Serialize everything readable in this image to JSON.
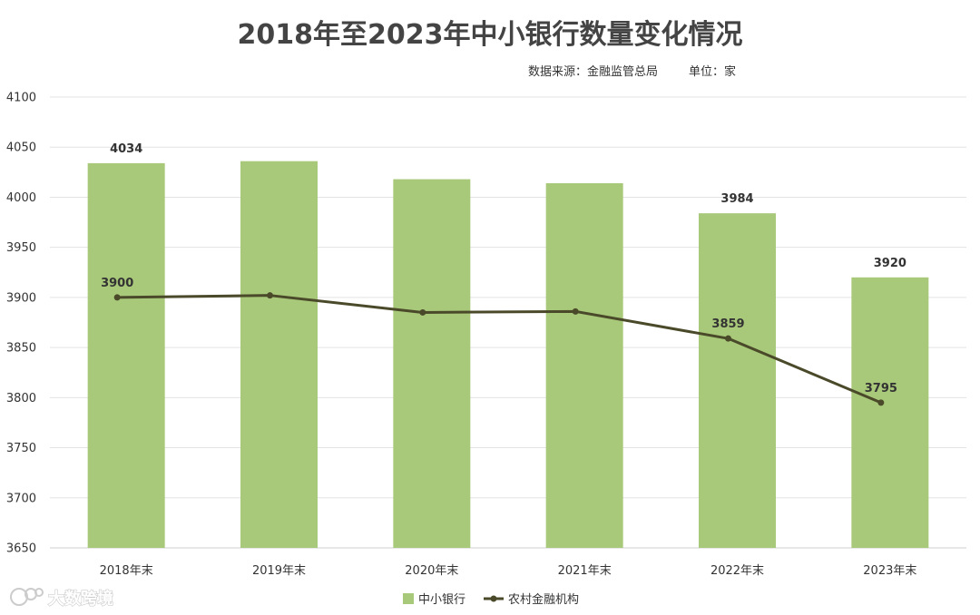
{
  "chart_data": {
    "type": "bar",
    "title": "2018年至2023年中小银行数量变化情况",
    "source_note": "数据来源：金融监管总局",
    "unit_note": "单位：家",
    "categories": [
      "2018年末",
      "2019年末",
      "2020年末",
      "2021年末",
      "2022年末",
      "2023年末"
    ],
    "series": [
      {
        "name": "中小银行",
        "type": "bar",
        "color": "#a9c97a",
        "values": [
          4034,
          4036,
          4018,
          4014,
          3984,
          3920
        ],
        "labels": [
          "4034",
          "",
          "",
          "",
          "3984",
          "3920"
        ]
      },
      {
        "name": "农村金融机构",
        "type": "line",
        "color": "#4a4a2a",
        "values": [
          3900,
          3902,
          3885,
          3886,
          3859,
          3795
        ],
        "labels": [
          "3900",
          "",
          "",
          "",
          "3859",
          "3795"
        ]
      }
    ],
    "ylim": [
      3650,
      4100
    ],
    "yticks": [
      3650,
      3700,
      3750,
      3800,
      3850,
      3900,
      3950,
      4000,
      4050,
      4100
    ],
    "grid": true,
    "legend_position": "bottom"
  },
  "watermark": {
    "text": "大数跨境",
    "icon": "watermark-logo-icon"
  }
}
